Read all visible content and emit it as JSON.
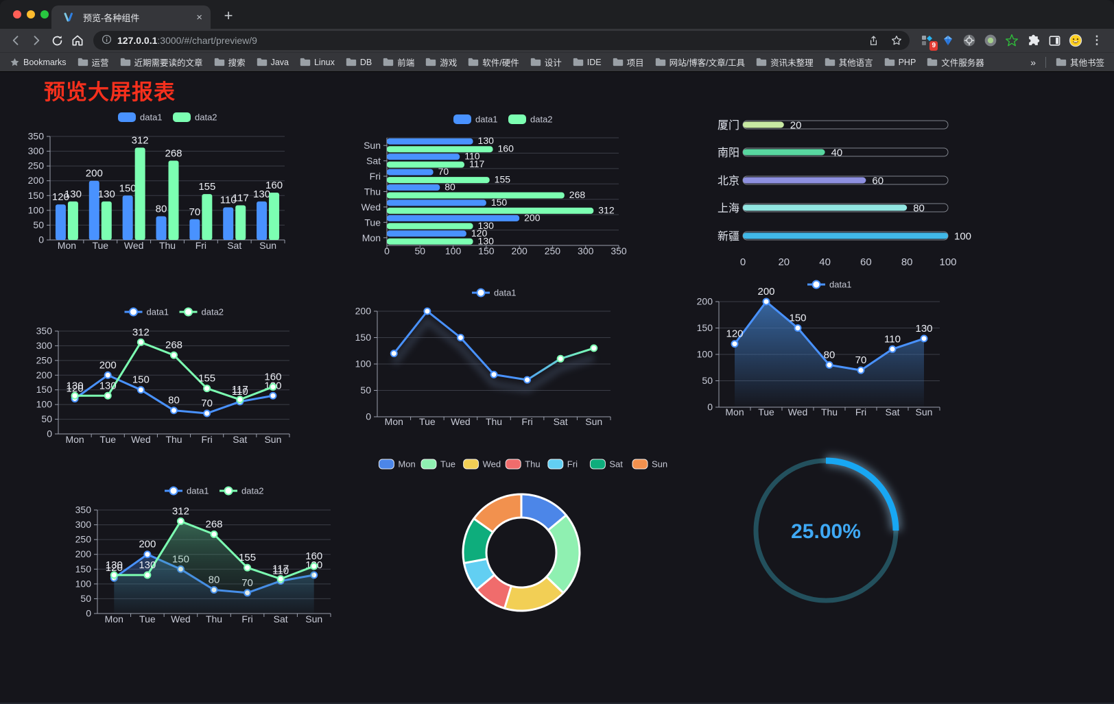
{
  "browser": {
    "traffic_lights": [
      "#ff5f57",
      "#febc2e",
      "#28c840"
    ],
    "tab_title": "预览-各种组件",
    "new_tab_glyph": "+",
    "close_glyph": "×",
    "url_host": "127.0.0.1",
    "url_rest": ":3000/#/chart/preview/9",
    "extension_badge": "9",
    "bookmarks_label": "Bookmarks",
    "bookmarks": [
      "运营",
      "近期需要读的文章",
      "搜索",
      "Java",
      "Linux",
      "DB",
      "前端",
      "游戏",
      "软件/硬件",
      "设计",
      "IDE",
      "项目",
      "网站/博客/文章/工具",
      "资讯未整理",
      "其他语言",
      "PHP",
      "文件服务器"
    ],
    "bookmarks_overflow": "»",
    "other_bookmarks": "其他书签",
    "menu_glyph": "⋮"
  },
  "icons": {
    "back-icon": "left-chevron",
    "forward-icon": "right-chevron",
    "reload-icon": "circular-arrow",
    "home-icon": "house",
    "info-icon": "circled-i",
    "share-icon": "box-with-up-arrow",
    "bookmark-star-icon": "star-outline",
    "extensions-puzzle-icon": "puzzle-piece",
    "side-panel-icon": "split-rectangle",
    "profile-avatar": "smiley-face",
    "folder-icon": "folder",
    "favicon": "v-logo"
  },
  "page": {
    "title": "预览大屏报表",
    "title_color": "#f5301d",
    "background": "#15151b"
  },
  "palette": {
    "blue": "#4992ff",
    "green": "#7cffb2"
  },
  "chart_data": [
    {
      "type": "bar",
      "categories": [
        "Mon",
        "Tue",
        "Wed",
        "Thu",
        "Fri",
        "Sat",
        "Sun"
      ],
      "series": [
        {
          "name": "data1",
          "color": "#4992ff",
          "values": [
            120,
            200,
            150,
            80,
            70,
            110,
            130
          ]
        },
        {
          "name": "data2",
          "color": "#7cffb2",
          "values": [
            130,
            130,
            312,
            268,
            155,
            117,
            160
          ]
        }
      ],
      "ylim": [
        0,
        350
      ],
      "yticks": [
        0,
        50,
        100,
        150,
        200,
        250,
        300,
        350
      ],
      "labels": true,
      "legend_position": "top",
      "grid": true
    },
    {
      "type": "bar",
      "orientation": "horizontal",
      "categories": [
        "Mon",
        "Tue",
        "Wed",
        "Thu",
        "Fri",
        "Sat",
        "Sun"
      ],
      "row_order_top_to_bottom": [
        "Sun",
        "Sat",
        "Fri",
        "Thu",
        "Wed",
        "Tue",
        "Mon"
      ],
      "series": [
        {
          "name": "data1",
          "color": "#4992ff",
          "values": [
            120,
            200,
            150,
            80,
            70,
            110,
            130
          ]
        },
        {
          "name": "data2",
          "color": "#7cffb2",
          "values": [
            130,
            130,
            312,
            268,
            155,
            117,
            160
          ]
        }
      ],
      "xlim": [
        0,
        350
      ],
      "xticks": [
        0,
        50,
        100,
        150,
        200,
        250,
        300,
        350
      ],
      "labels": true,
      "legend_position": "top",
      "grid": true
    },
    {
      "type": "bar",
      "subtype": "progress-list",
      "max": 100,
      "xticks": [
        0,
        20,
        40,
        60,
        80,
        100
      ],
      "items": [
        {
          "label": "厦门",
          "value": 20,
          "color": "#c8e8a2"
        },
        {
          "label": "南阳",
          "value": 40,
          "color": "#58d6a0"
        },
        {
          "label": "北京",
          "value": 60,
          "color": "#8e90e0"
        },
        {
          "label": "上海",
          "value": 80,
          "color": "#92e6e2"
        },
        {
          "label": "新疆",
          "value": 100,
          "color": "#41b8e8"
        }
      ]
    },
    {
      "type": "line",
      "categories": [
        "Mon",
        "Tue",
        "Wed",
        "Thu",
        "Fri",
        "Sat",
        "Sun"
      ],
      "series": [
        {
          "name": "data1",
          "color": "#4992ff",
          "values": [
            120,
            200,
            150,
            80,
            70,
            110,
            130
          ]
        },
        {
          "name": "data2",
          "color": "#7cffb2",
          "values": [
            130,
            130,
            312,
            268,
            155,
            117,
            160
          ]
        }
      ],
      "ylim": [
        0,
        350
      ],
      "yticks": [
        0,
        50,
        100,
        150,
        200,
        250,
        300,
        350
      ],
      "labels": true,
      "legend_position": "top",
      "grid": true
    },
    {
      "type": "line",
      "categories": [
        "Mon",
        "Tue",
        "Wed",
        "Thu",
        "Fri",
        "Sat",
        "Sun"
      ],
      "series": [
        {
          "name": "data1",
          "color": "#4992ff",
          "gradient": [
            "#4992ff",
            "#7cffb2"
          ],
          "values": [
            120,
            200,
            150,
            80,
            70,
            110,
            130
          ]
        }
      ],
      "ylim": [
        0,
        200
      ],
      "yticks": [
        0,
        50,
        100,
        150,
        200
      ],
      "labels": false,
      "shadow": true,
      "legend_position": "top",
      "grid": true
    },
    {
      "type": "area",
      "categories": [
        "Mon",
        "Tue",
        "Wed",
        "Thu",
        "Fri",
        "Sat",
        "Sun"
      ],
      "series": [
        {
          "name": "data1",
          "color": "#4992ff",
          "area": [
            "rgba(62,120,190,0.80)",
            "rgba(62,120,190,0.02)"
          ],
          "values": [
            120,
            200,
            150,
            80,
            70,
            110,
            130
          ]
        }
      ],
      "ylim": [
        0,
        200
      ],
      "yticks": [
        0,
        50,
        100,
        150,
        200
      ],
      "labels": true,
      "legend_position": "top",
      "grid": true
    },
    {
      "type": "area",
      "subtype": "line-with-area",
      "categories": [
        "Mon",
        "Tue",
        "Wed",
        "Thu",
        "Fri",
        "Sat",
        "Sun"
      ],
      "series": [
        {
          "name": "data1",
          "color": "#4992ff",
          "area": [
            "rgba(73,146,255,0.32)",
            "rgba(73,146,255,0.02)"
          ],
          "values": [
            120,
            200,
            150,
            80,
            70,
            110,
            130
          ]
        },
        {
          "name": "data2",
          "color": "#7cffb2",
          "area": [
            "rgba(96,200,150,0.45)",
            "rgba(40,90,70,0.04)"
          ],
          "values": [
            130,
            130,
            312,
            268,
            155,
            117,
            160
          ]
        }
      ],
      "ylim": [
        0,
        350
      ],
      "yticks": [
        0,
        50,
        100,
        150,
        200,
        250,
        300,
        350
      ],
      "labels": true,
      "legend_position": "top",
      "grid": true
    },
    {
      "type": "pie",
      "shape": "donut",
      "legend_position": "top",
      "categories": [
        "Mon",
        "Tue",
        "Wed",
        "Thu",
        "Fri",
        "Sat",
        "Sun"
      ],
      "values": [
        120,
        200,
        150,
        80,
        70,
        110,
        130
      ],
      "colors": [
        "#4c86e8",
        "#8ff0b1",
        "#f2cf55",
        "#f06c6c",
        "#62cff2",
        "#0ead7c",
        "#f2914e"
      ],
      "border_color": "#ffffff"
    },
    {
      "type": "gauge",
      "percent": 25,
      "value_text": "25.00%",
      "track_color": "#23505d",
      "progress_color": "#18a7f3",
      "glow_color": "rgba(165,220,255,0.45)",
      "text_color": "#3fa9f5"
    }
  ]
}
